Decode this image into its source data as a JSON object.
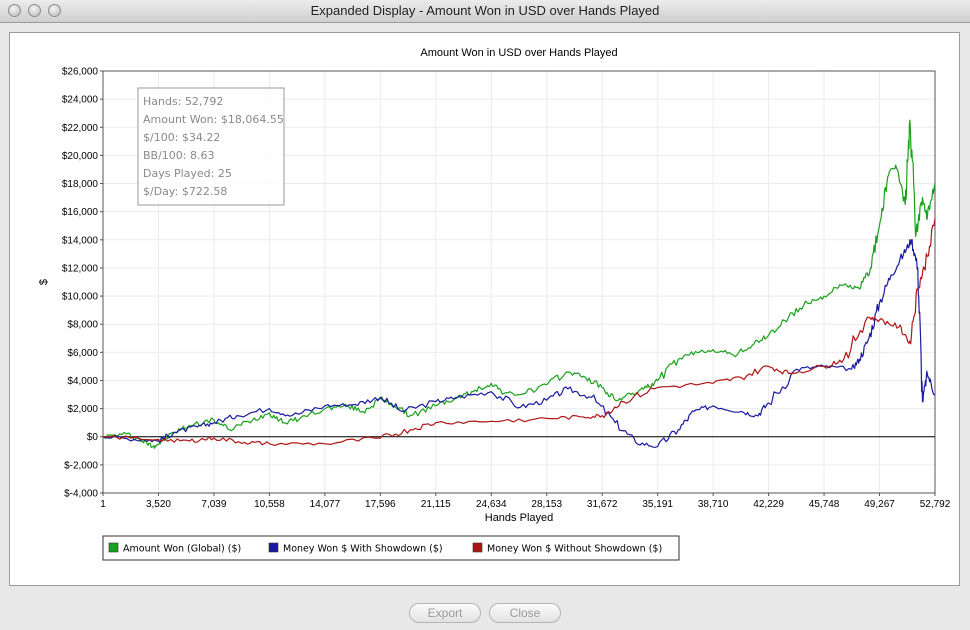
{
  "window": {
    "title": "Expanded Display - Amount Won in USD over Hands Played"
  },
  "buttons": {
    "export": "Export",
    "close": "Close"
  },
  "info_box": {
    "lines": [
      "Hands: 52,792",
      "Amount Won: $18,064.55",
      "$/100: $34.22",
      "BB/100: 8.63",
      "Days Played: 25",
      "$/Day: $722.58"
    ]
  },
  "chart_data": {
    "type": "line",
    "title": "Amount Won in USD over Hands Played",
    "xlabel": "Hands Played",
    "ylabel": "$",
    "xlim": [
      1,
      52792
    ],
    "ylim": [
      -4000,
      26000
    ],
    "x_ticks": [
      "1",
      "3,520",
      "7,039",
      "10,558",
      "14,077",
      "17,596",
      "21,115",
      "24,634",
      "28,153",
      "31,672",
      "35,191",
      "38,710",
      "42,229",
      "45,748",
      "49,267",
      "52,792"
    ],
    "y_ticks": [
      "$-4,000",
      "$-2,000",
      "$0",
      "$2,000",
      "$4,000",
      "$6,000",
      "$8,000",
      "$10,000",
      "$12,000",
      "$14,000",
      "$16,000",
      "$18,000",
      "$20,000",
      "$22,000",
      "$24,000",
      "$26,000"
    ],
    "grid": true,
    "legend_position": "bottom-left",
    "series": [
      {
        "name": "Amount Won (Global) ($)",
        "color": "#1aa01a",
        "x": [
          1,
          1500,
          2500,
          3200,
          3520,
          4500,
          5500,
          7039,
          8000,
          9500,
          10558,
          11500,
          12500,
          14077,
          15500,
          16500,
          17596,
          18500,
          19500,
          21115,
          22500,
          23500,
          24634,
          25500,
          26500,
          28153,
          29500,
          30500,
          31672,
          32500,
          33500,
          34500,
          35191,
          36500,
          37700,
          38710,
          40000,
          41200,
          42229,
          43500,
          44700,
          45748,
          47000,
          48000,
          48700,
          49267,
          49800,
          50300,
          50900,
          51200,
          51600,
          52000,
          52300,
          52792
        ],
        "values": [
          0,
          200,
          -300,
          -700,
          -500,
          300,
          800,
          1200,
          500,
          1200,
          1700,
          1000,
          1300,
          2000,
          2200,
          1800,
          2700,
          2200,
          1500,
          2200,
          2800,
          3200,
          3800,
          3100,
          3000,
          3700,
          4600,
          4300,
          3500,
          2600,
          3000,
          3500,
          4000,
          5500,
          6000,
          6200,
          5800,
          6500,
          7200,
          8500,
          9500,
          10000,
          10800,
          10500,
          12000,
          15000,
          18500,
          19300,
          16500,
          22500,
          14500,
          17000,
          15500,
          18000
        ]
      },
      {
        "name": "Money Won $ With Showdown ($)",
        "color": "#1a1aa0",
        "x": [
          1,
          2500,
          3520,
          4500,
          6000,
          7039,
          8500,
          10558,
          12000,
          14077,
          16000,
          17596,
          19000,
          21115,
          22500,
          24634,
          26500,
          28153,
          29500,
          31000,
          32500,
          33800,
          35191,
          36500,
          37500,
          38710,
          40500,
          41500,
          42229,
          44000,
          45748,
          47500,
          48000,
          48600,
          49267,
          50000,
          50800,
          51300,
          51700,
          52000,
          52300,
          52792
        ],
        "values": [
          0,
          -200,
          -300,
          300,
          700,
          1000,
          1500,
          2000,
          1500,
          2200,
          2300,
          2800,
          1800,
          2500,
          2800,
          3200,
          2100,
          2600,
          3400,
          2800,
          1000,
          -400,
          -700,
          500,
          1800,
          2200,
          1800,
          1500,
          2400,
          4800,
          5000,
          4800,
          5500,
          7000,
          9500,
          11500,
          13000,
          14000,
          12000,
          2500,
          4500,
          3000
        ]
      },
      {
        "name": "Money Won $ Without Showdown ($)",
        "color": "#b01515",
        "x": [
          1,
          3520,
          5500,
          7039,
          9000,
          10558,
          14077,
          17596,
          19500,
          21115,
          24634,
          28153,
          30500,
          31672,
          33000,
          35191,
          38710,
          40500,
          42229,
          43500,
          45748,
          47000,
          48500,
          49267,
          50500,
          51200,
          51700,
          52100,
          52792
        ],
        "values": [
          0,
          -200,
          -300,
          -100,
          -400,
          -500,
          -500,
          -100,
          500,
          1000,
          1100,
          1300,
          1400,
          1500,
          2500,
          3500,
          3800,
          4200,
          5000,
          4500,
          5000,
          5500,
          8500,
          8300,
          7800,
          6800,
          10500,
          12000,
          15500
        ]
      }
    ]
  }
}
